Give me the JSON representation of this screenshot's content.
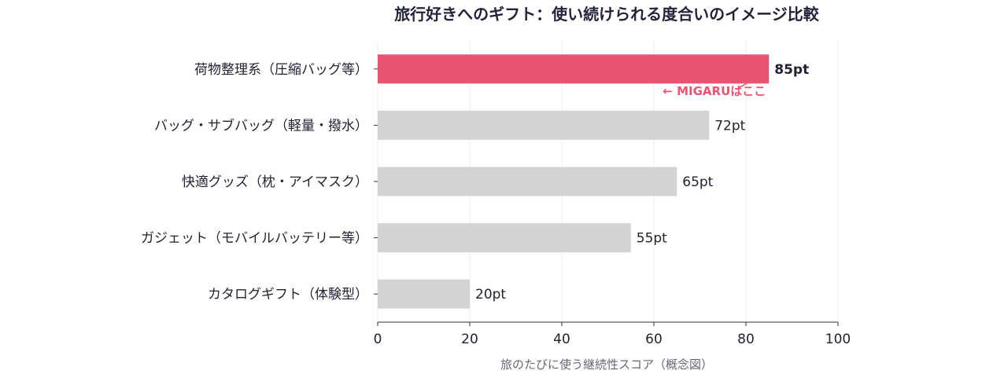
{
  "chart_data": {
    "type": "bar",
    "orientation": "horizontal",
    "title": "旅行好きへのギフト：使い続けられる度合いのイメージ比較",
    "xlabel": "旅のたびに使う継続性スコア（概念図）",
    "ylabel": "",
    "xlim": [
      0,
      100
    ],
    "xticks": [
      0,
      20,
      40,
      60,
      80,
      100
    ],
    "grid": "vertical",
    "categories": [
      "荷物整理系（圧縮バッグ等）",
      "バッグ・サブバッグ（軽量・撥水）",
      "快適グッズ（枕・アイマスク）",
      "ガジェット（モバイルバッテリー等）",
      "カタログギフト（体験型）"
    ],
    "values": [
      85,
      72,
      65,
      55,
      20
    ],
    "value_labels": [
      "85pt",
      "72pt",
      "65pt",
      "55pt",
      "20pt"
    ],
    "highlight_index": 0,
    "colors": {
      "highlight": "#e85471",
      "default": "#d3d3d3",
      "annotation": "#e85471"
    },
    "annotation": {
      "text": "← MIGARUはここ",
      "category_index": 0
    }
  }
}
